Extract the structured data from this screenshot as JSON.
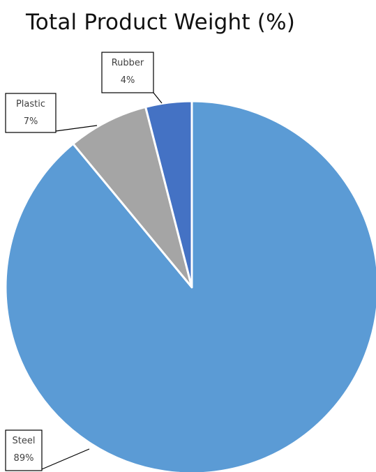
{
  "chart_data": {
    "type": "pie",
    "title": "Total Product Weight (%)",
    "labels": [
      "Steel",
      "Plastic",
      "Rubber"
    ],
    "values": [
      89,
      7,
      4
    ],
    "value_labels": [
      "89%",
      "7%",
      "4%"
    ],
    "colors": [
      "#5B9BD5",
      "#A5A5A5",
      "#4472C4"
    ],
    "start_angle": "12 o'clock, clockwise",
    "legend": "none (data callouts)"
  }
}
